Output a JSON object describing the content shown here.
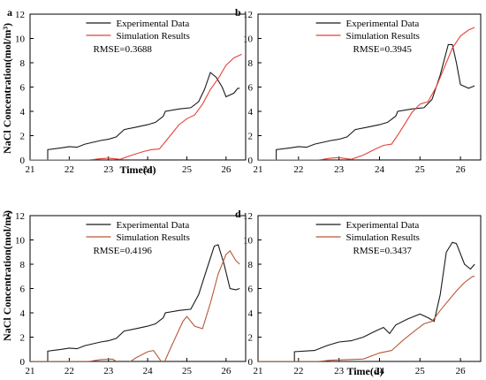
{
  "figure": {
    "ylabel": "NaCl Concentration(mol/m³)",
    "xlabel": "Time(d)"
  },
  "chart_data": [
    {
      "type": "line",
      "panel": "a",
      "xlabel": "",
      "ylabel": "",
      "xlim": [
        21,
        26.5
      ],
      "ylim": [
        0,
        12
      ],
      "xticks": [
        21,
        22,
        23,
        24,
        25,
        26
      ],
      "yticks": [
        0,
        2,
        4,
        6,
        8,
        10,
        12
      ],
      "legend_placement": "top-center",
      "annotation": "RMSE=0.3688",
      "series": [
        {
          "name": "Experimental Data",
          "color": "#1a1a1a",
          "points": [
            [
              21.45,
              0
            ],
            [
              21.45,
              0.85
            ],
            [
              21.8,
              1.0
            ],
            [
              22.0,
              1.1
            ],
            [
              22.2,
              1.05
            ],
            [
              22.4,
              1.3
            ],
            [
              22.8,
              1.6
            ],
            [
              23.0,
              1.7
            ],
            [
              23.2,
              1.9
            ],
            [
              23.4,
              2.5
            ],
            [
              23.7,
              2.7
            ],
            [
              24.0,
              2.9
            ],
            [
              24.2,
              3.1
            ],
            [
              24.4,
              3.6
            ],
            [
              24.45,
              4.0
            ],
            [
              24.8,
              4.2
            ],
            [
              25.1,
              4.3
            ],
            [
              25.3,
              4.8
            ],
            [
              25.45,
              5.8
            ],
            [
              25.6,
              7.2
            ],
            [
              25.75,
              6.8
            ],
            [
              25.9,
              6.0
            ],
            [
              26.0,
              5.2
            ],
            [
              26.2,
              5.5
            ],
            [
              26.3,
              5.9
            ],
            [
              26.35,
              5.9
            ]
          ]
        },
        {
          "name": "Simulation Results",
          "color": "#e8413a",
          "points": [
            [
              21.0,
              0
            ],
            [
              22.0,
              0
            ],
            [
              22.5,
              0
            ],
            [
              22.8,
              0.1
            ],
            [
              23.0,
              0.15
            ],
            [
              23.3,
              0.05
            ],
            [
              23.6,
              0.4
            ],
            [
              23.9,
              0.7
            ],
            [
              24.1,
              0.85
            ],
            [
              24.3,
              0.9
            ],
            [
              24.5,
              1.7
            ],
            [
              24.8,
              2.9
            ],
            [
              25.0,
              3.4
            ],
            [
              25.2,
              3.7
            ],
            [
              25.4,
              4.6
            ],
            [
              25.6,
              5.8
            ],
            [
              25.8,
              6.7
            ],
            [
              26.0,
              7.8
            ],
            [
              26.2,
              8.4
            ],
            [
              26.4,
              8.7
            ]
          ]
        }
      ]
    },
    {
      "type": "line",
      "panel": "b",
      "xlabel": "",
      "ylabel": "",
      "xlim": [
        21,
        26.5
      ],
      "ylim": [
        0,
        12
      ],
      "xticks": [
        21,
        22,
        23,
        24,
        25,
        26
      ],
      "yticks": [
        0,
        2,
        4,
        6,
        8,
        10,
        12
      ],
      "legend_placement": "top-center",
      "annotation": "RMSE=0.3945",
      "series": [
        {
          "name": "Experimental Data",
          "color": "#1a1a1a",
          "points": [
            [
              21.45,
              0
            ],
            [
              21.45,
              0.85
            ],
            [
              21.8,
              1.0
            ],
            [
              22.0,
              1.1
            ],
            [
              22.2,
              1.05
            ],
            [
              22.4,
              1.3
            ],
            [
              22.8,
              1.6
            ],
            [
              23.0,
              1.7
            ],
            [
              23.2,
              1.9
            ],
            [
              23.4,
              2.5
            ],
            [
              23.7,
              2.7
            ],
            [
              24.0,
              2.9
            ],
            [
              24.2,
              3.1
            ],
            [
              24.4,
              3.6
            ],
            [
              24.45,
              4.0
            ],
            [
              24.8,
              4.2
            ],
            [
              25.1,
              4.3
            ],
            [
              25.3,
              5.0
            ],
            [
              25.5,
              7.0
            ],
            [
              25.7,
              9.5
            ],
            [
              25.8,
              9.5
            ],
            [
              25.9,
              8.0
            ],
            [
              26.0,
              6.2
            ],
            [
              26.2,
              5.9
            ],
            [
              26.35,
              6.1
            ]
          ]
        },
        {
          "name": "Simulation Results",
          "color": "#e8413a",
          "points": [
            [
              21.0,
              0
            ],
            [
              22.0,
              0
            ],
            [
              22.5,
              0
            ],
            [
              22.8,
              0.15
            ],
            [
              23.0,
              0.2
            ],
            [
              23.3,
              0.05
            ],
            [
              23.6,
              0.4
            ],
            [
              23.9,
              0.9
            ],
            [
              24.1,
              1.2
            ],
            [
              24.3,
              1.3
            ],
            [
              24.5,
              2.3
            ],
            [
              24.8,
              3.9
            ],
            [
              25.0,
              4.6
            ],
            [
              25.2,
              4.8
            ],
            [
              25.4,
              6.0
            ],
            [
              25.6,
              7.6
            ],
            [
              25.8,
              9.2
            ],
            [
              26.0,
              10.2
            ],
            [
              26.2,
              10.7
            ],
            [
              26.35,
              10.9
            ]
          ]
        }
      ]
    },
    {
      "type": "line",
      "panel": "c",
      "xlabel": "",
      "ylabel": "",
      "xlim": [
        21,
        26.5
      ],
      "ylim": [
        0,
        12
      ],
      "xticks": [
        21,
        22,
        23,
        24,
        25,
        26
      ],
      "yticks": [
        0,
        2,
        4,
        6,
        8,
        10,
        12
      ],
      "legend_placement": "top-center",
      "annotation": "RMSE=0.4196",
      "series": [
        {
          "name": "Experimental Data",
          "color": "#1a1a1a",
          "points": [
            [
              21.45,
              0
            ],
            [
              21.45,
              0.85
            ],
            [
              21.8,
              1.0
            ],
            [
              22.0,
              1.1
            ],
            [
              22.2,
              1.05
            ],
            [
              22.4,
              1.3
            ],
            [
              22.8,
              1.6
            ],
            [
              23.0,
              1.7
            ],
            [
              23.2,
              1.9
            ],
            [
              23.4,
              2.5
            ],
            [
              23.7,
              2.7
            ],
            [
              24.0,
              2.9
            ],
            [
              24.2,
              3.1
            ],
            [
              24.4,
              3.6
            ],
            [
              24.45,
              4.0
            ],
            [
              24.8,
              4.2
            ],
            [
              25.1,
              4.3
            ],
            [
              25.3,
              5.5
            ],
            [
              25.5,
              7.5
            ],
            [
              25.7,
              9.5
            ],
            [
              25.8,
              9.6
            ],
            [
              25.95,
              8.0
            ],
            [
              26.1,
              6.0
            ],
            [
              26.25,
              5.9
            ],
            [
              26.35,
              6.0
            ]
          ]
        },
        {
          "name": "Simulation Results",
          "color": "#b5593a",
          "points": [
            [
              21.0,
              0
            ],
            [
              22.0,
              0
            ],
            [
              22.5,
              0
            ],
            [
              22.8,
              0.15
            ],
            [
              23.1,
              0.2
            ],
            [
              23.4,
              -0.35
            ],
            [
              23.7,
              0.3
            ],
            [
              24.0,
              0.8
            ],
            [
              24.15,
              0.9
            ],
            [
              24.4,
              -0.25
            ],
            [
              24.6,
              1.2
            ],
            [
              24.9,
              3.3
            ],
            [
              25.0,
              3.7
            ],
            [
              25.2,
              2.9
            ],
            [
              25.4,
              2.7
            ],
            [
              25.6,
              4.8
            ],
            [
              25.8,
              7.2
            ],
            [
              26.0,
              8.8
            ],
            [
              26.1,
              9.1
            ],
            [
              26.25,
              8.3
            ],
            [
              26.35,
              8.0
            ]
          ]
        }
      ]
    },
    {
      "type": "line",
      "panel": "d",
      "xlabel": "",
      "ylabel": "",
      "xlim": [
        21,
        26.5
      ],
      "ylim": [
        0,
        12
      ],
      "xticks": [
        21,
        22,
        23,
        24,
        25,
        26
      ],
      "yticks": [
        0,
        2,
        4,
        6,
        8,
        10,
        12
      ],
      "legend_placement": "top-center",
      "annotation": "RMSE=0.3437",
      "series": [
        {
          "name": "Experimental Data",
          "color": "#1a1a1a",
          "points": [
            [
              21.9,
              0
            ],
            [
              21.9,
              0.8
            ],
            [
              22.4,
              0.9
            ],
            [
              22.7,
              1.3
            ],
            [
              23.0,
              1.6
            ],
            [
              23.3,
              1.7
            ],
            [
              23.6,
              2.0
            ],
            [
              23.9,
              2.5
            ],
            [
              24.1,
              2.8
            ],
            [
              24.25,
              2.3
            ],
            [
              24.4,
              3.0
            ],
            [
              24.7,
              3.5
            ],
            [
              25.0,
              3.9
            ],
            [
              25.2,
              3.6
            ],
            [
              25.35,
              3.3
            ],
            [
              25.5,
              5.5
            ],
            [
              25.65,
              9.0
            ],
            [
              25.8,
              9.8
            ],
            [
              25.9,
              9.7
            ],
            [
              26.1,
              8.0
            ],
            [
              26.25,
              7.6
            ],
            [
              26.35,
              8.0
            ]
          ]
        },
        {
          "name": "Simulation Results",
          "color": "#b5593a",
          "points": [
            [
              21.0,
              0
            ],
            [
              22.0,
              0
            ],
            [
              22.5,
              0
            ],
            [
              22.8,
              0.1
            ],
            [
              23.2,
              0.15
            ],
            [
              23.6,
              0.2
            ],
            [
              24.0,
              0.7
            ],
            [
              24.3,
              0.9
            ],
            [
              24.6,
              1.8
            ],
            [
              24.9,
              2.6
            ],
            [
              25.1,
              3.1
            ],
            [
              25.3,
              3.3
            ],
            [
              25.5,
              4.2
            ],
            [
              25.7,
              5.0
            ],
            [
              25.9,
              5.8
            ],
            [
              26.1,
              6.5
            ],
            [
              26.3,
              7.0
            ],
            [
              26.35,
              7.0
            ]
          ]
        }
      ]
    }
  ]
}
